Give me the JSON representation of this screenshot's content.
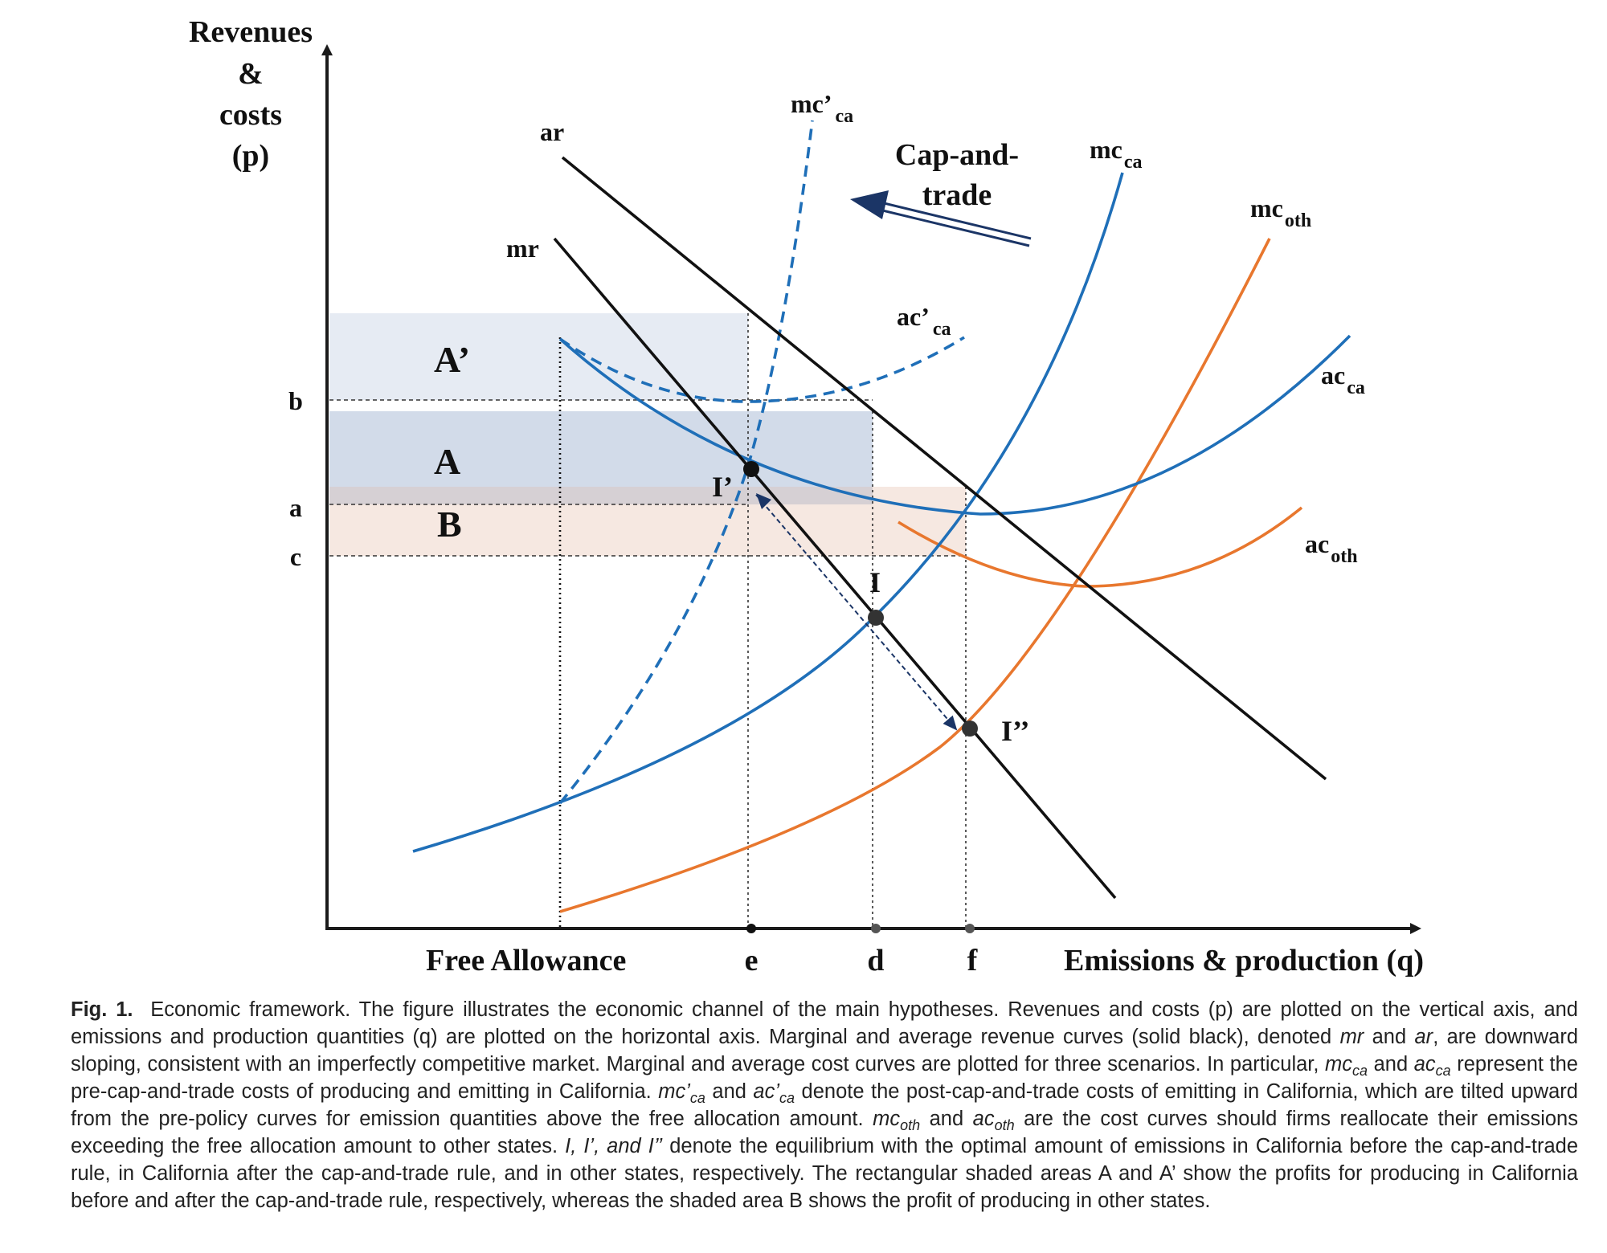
{
  "diagram": {
    "y_axis_label": [
      "Revenues",
      "&",
      "costs",
      "(p)"
    ],
    "x_axis_label": "Emissions & production (q)",
    "x_ticks": {
      "free_allowance": "Free Allowance",
      "e": "e",
      "d": "d",
      "f": "f"
    },
    "y_ticks": {
      "b": "b",
      "a": "a",
      "c": "c"
    },
    "areas": {
      "A_prime": "A’",
      "A": "A",
      "B": "B"
    },
    "curves": {
      "ar": "ar",
      "mr": "mr",
      "mc_prime_ca": {
        "base": "mc’",
        "sub": "ca"
      },
      "ac_prime_ca": {
        "base": "ac’",
        "sub": "ca"
      },
      "mc_ca": {
        "base": "mc",
        "sub": "ca"
      },
      "ac_ca": {
        "base": "ac",
        "sub": "ca"
      },
      "mc_oth": {
        "base": "mc",
        "sub": "oth"
      },
      "ac_oth": {
        "base": "ac",
        "sub": "oth"
      }
    },
    "equilibria": {
      "I": "I",
      "I_prime": "I’",
      "I_double_prime": "I’’"
    },
    "cap_and_trade": [
      "Cap-and-",
      "trade"
    ],
    "colors": {
      "axis": "#1a1a1a",
      "revenue_curves": "#111111",
      "ca_curves": "#1f6fb8",
      "oth_curves": "#e8772e",
      "arrow": "#1b3566",
      "area_A_prime": "#e6ebf3",
      "area_A": "#d2dbe9",
      "area_B": "#f6e8e1",
      "area_overlap": "#d6d0d4"
    }
  },
  "caption": {
    "fig_label": "Fig. 1.",
    "p1": "Economic framework. The figure illustrates the economic channel of the main hypotheses. Revenues and costs (p) are plotted on the vertical axis, and emissions and production quantities (q) are plotted on the horizontal axis. Marginal and average revenue curves (solid black), denoted",
    "mr": "mr",
    "and1": "and",
    "ar": "ar",
    "p2": ", are downward sloping, consistent with an imperfectly competitive market. Marginal and average cost curves are plotted for three scenarios. In particular,",
    "mc": "mc",
    "ca": "ca",
    "and2": "and",
    "ac": "ac",
    "p3": "represent the pre-cap-and-trade costs of producing and emitting in California.",
    "mc_prime": "mc’",
    "and3": "and",
    "ac_prime": "ac’",
    "p4": "denote the post-cap-and-trade costs of emitting in California, which are tilted upward from the pre-policy curves for emission quantities above the free allocation amount.",
    "oth": "oth",
    "and4": "and",
    "p5": "are the cost curves should firms reallocate their emissions exceeding the free allocation amount to other states.",
    "eq_list": "I, I’, and I’’",
    "p6": "denote the equilibrium with the optimal amount of emissions in California before the cap-and-trade rule, in California after the cap-and-trade rule, and in other states, respectively. The rectangular shaded areas A and A’ show the profits for producing in California before and after the cap-and-trade rule, respectively, whereas the shaded area B shows the profit of producing in other states."
  }
}
